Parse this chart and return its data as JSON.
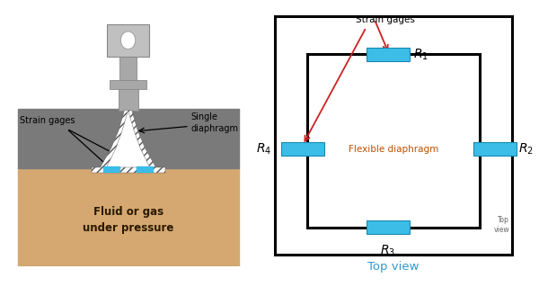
{
  "bg_color": "#ffffff",
  "left_panel": {
    "fluid_color": "#d4a870",
    "fluid_text": "Fluid or gas\nunder pressure",
    "body_color": "#7a7a7a",
    "stem_color": "#a8a8a8",
    "stem_dark": "#888888",
    "strain_gage_color": "#3bbde8",
    "label_strain": "Strain gages",
    "label_diaphragm": "Single\ndiaphragm"
  },
  "right_panel": {
    "gage_color": "#3bbde8",
    "gage_edge": "#1a8ab0",
    "label_flex": "Flexible diaphragm",
    "label_topview_bottom": "Top view",
    "label_topview_corner": "Top\nview",
    "label_strain": "Strain gages",
    "arrow_color": "#cc2222",
    "flex_text_color": "#c05000",
    "topview_color": "#3399cc",
    "corner_color": "#666666"
  }
}
